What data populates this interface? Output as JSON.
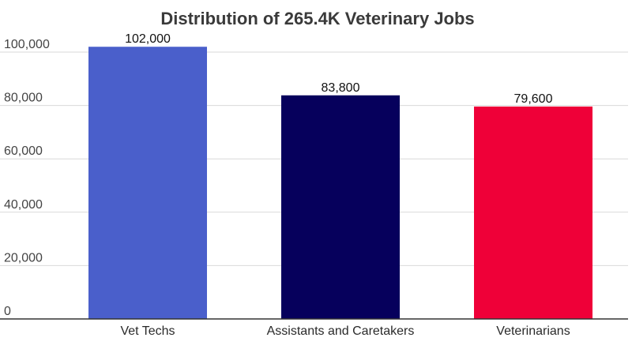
{
  "chart_data": {
    "type": "bar",
    "title": "Distribution of 265.4K Veterinary Jobs",
    "xlabel": "",
    "ylabel": "",
    "categories": [
      "Vet Techs",
      "Assistants and Caretakers",
      "Veterinarians"
    ],
    "values": [
      102000,
      83800,
      79600
    ],
    "value_labels": [
      "102,000",
      "83,800",
      "79,600"
    ],
    "bar_colors": [
      "#4a5fcb",
      "#06005c",
      "#ef0038"
    ],
    "ylim": [
      0,
      100000
    ],
    "y_ticks": [
      0,
      20000,
      40000,
      60000,
      80000,
      100000
    ],
    "y_tick_labels": [
      "0",
      "20,000",
      "40,000",
      "60,000",
      "80,000",
      "100,000"
    ],
    "grid": true,
    "legend": "none"
  }
}
